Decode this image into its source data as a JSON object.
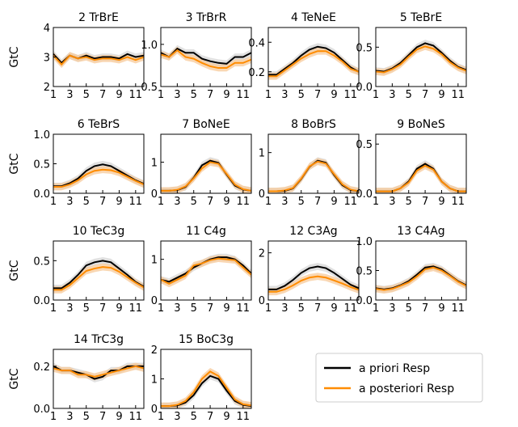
{
  "colors": {
    "prior": "#000000",
    "post": "#ff8c00",
    "prior_band": "#d9d9d9",
    "post_band": "#f7c99a"
  },
  "legend": {
    "prior": "a priori Resp",
    "post": "a posteriori Resp",
    "placement": "lower-right"
  },
  "chart_data": [
    {
      "type": "line",
      "title": "2 TrBrE",
      "ylabel": "GtC",
      "x": [
        1,
        2,
        3,
        4,
        5,
        6,
        7,
        8,
        9,
        10,
        11,
        12
      ],
      "xticks": [
        "1",
        "3",
        "5",
        "7",
        "9",
        "11"
      ],
      "ylim": [
        2,
        4
      ],
      "yticks": [
        "2",
        "3",
        "4"
      ],
      "series": [
        {
          "name": "a priori Resp",
          "values": [
            3.1,
            2.8,
            3.05,
            2.95,
            3.05,
            2.95,
            3.0,
            3.0,
            2.95,
            3.1,
            3.0,
            3.05
          ]
        },
        {
          "name": "a posteriori Resp",
          "values": [
            3.05,
            2.75,
            3.05,
            2.95,
            3.0,
            2.9,
            2.95,
            2.95,
            2.9,
            3.0,
            2.9,
            3.0
          ]
        }
      ]
    },
    {
      "type": "line",
      "title": "3 TrBrR",
      "ylabel": "",
      "x": [
        1,
        2,
        3,
        4,
        5,
        6,
        7,
        8,
        9,
        10,
        11,
        12
      ],
      "xticks": [
        "1",
        "3",
        "5",
        "7",
        "9",
        "11"
      ],
      "ylim": [
        0.5,
        1.2
      ],
      "yticks": [
        "0.5",
        "1.0"
      ],
      "series": [
        {
          "name": "a priori Resp",
          "values": [
            0.9,
            0.85,
            0.95,
            0.9,
            0.9,
            0.83,
            0.8,
            0.78,
            0.77,
            0.85,
            0.85,
            0.9
          ]
        },
        {
          "name": "a posteriori Resp",
          "values": [
            0.88,
            0.85,
            0.93,
            0.85,
            0.83,
            0.78,
            0.74,
            0.72,
            0.72,
            0.78,
            0.78,
            0.82
          ]
        }
      ]
    },
    {
      "type": "line",
      "title": "4 TeNeE",
      "ylabel": "",
      "x": [
        1,
        2,
        3,
        4,
        5,
        6,
        7,
        8,
        9,
        10,
        11,
        12
      ],
      "xticks": [
        "1",
        "3",
        "5",
        "7",
        "9",
        "11"
      ],
      "ylim": [
        0.1,
        0.5
      ],
      "yticks": [
        "0.2",
        "0.4"
      ],
      "series": [
        {
          "name": "a priori Resp",
          "values": [
            0.18,
            0.18,
            0.22,
            0.26,
            0.31,
            0.35,
            0.37,
            0.36,
            0.33,
            0.28,
            0.23,
            0.2
          ]
        },
        {
          "name": "a posteriori Resp",
          "values": [
            0.17,
            0.17,
            0.21,
            0.25,
            0.29,
            0.32,
            0.34,
            0.34,
            0.31,
            0.27,
            0.22,
            0.2
          ]
        }
      ]
    },
    {
      "type": "line",
      "title": "5 TeBrE",
      "ylabel": "",
      "x": [
        1,
        2,
        3,
        4,
        5,
        6,
        7,
        8,
        9,
        10,
        11,
        12
      ],
      "xticks": [
        "1",
        "3",
        "5",
        "7",
        "9",
        "11"
      ],
      "ylim": [
        0,
        0.75
      ],
      "yticks": [
        "0.0",
        "0.5"
      ],
      "series": [
        {
          "name": "a priori Resp",
          "values": [
            0.2,
            0.19,
            0.23,
            0.3,
            0.4,
            0.5,
            0.55,
            0.52,
            0.43,
            0.33,
            0.25,
            0.21
          ]
        },
        {
          "name": "a posteriori Resp",
          "values": [
            0.19,
            0.18,
            0.22,
            0.28,
            0.38,
            0.47,
            0.51,
            0.48,
            0.41,
            0.31,
            0.24,
            0.2
          ]
        }
      ]
    },
    {
      "type": "line",
      "title": "6 TeBrS",
      "ylabel": "GtC",
      "x": [
        1,
        2,
        3,
        4,
        5,
        6,
        7,
        8,
        9,
        10,
        11,
        12
      ],
      "xticks": [
        "1",
        "3",
        "5",
        "7",
        "9",
        "11"
      ],
      "ylim": [
        0,
        1.0
      ],
      "yticks": [
        "0.0",
        "0.5",
        "1.0"
      ],
      "series": [
        {
          "name": "a priori Resp",
          "values": [
            0.12,
            0.12,
            0.17,
            0.25,
            0.38,
            0.46,
            0.49,
            0.46,
            0.38,
            0.3,
            0.22,
            0.16
          ]
        },
        {
          "name": "a posteriori Resp",
          "values": [
            0.11,
            0.11,
            0.15,
            0.22,
            0.32,
            0.38,
            0.4,
            0.39,
            0.35,
            0.28,
            0.21,
            0.15
          ]
        }
      ]
    },
    {
      "type": "line",
      "title": "7 BoNeE",
      "ylabel": "",
      "x": [
        1,
        2,
        3,
        4,
        5,
        6,
        7,
        8,
        9,
        10,
        11,
        12
      ],
      "xticks": [
        "1",
        "3",
        "5",
        "7",
        "9",
        "11"
      ],
      "ylim": [
        0,
        1.9
      ],
      "yticks": [
        "0",
        "1"
      ],
      "series": [
        {
          "name": "a priori Resp",
          "values": [
            0.08,
            0.08,
            0.1,
            0.2,
            0.5,
            0.9,
            1.05,
            0.98,
            0.6,
            0.25,
            0.12,
            0.08
          ]
        },
        {
          "name": "a posteriori Resp",
          "values": [
            0.08,
            0.08,
            0.11,
            0.22,
            0.48,
            0.8,
            1.0,
            0.95,
            0.62,
            0.28,
            0.13,
            0.08
          ]
        }
      ]
    },
    {
      "type": "line",
      "title": "8 BoBrS",
      "ylabel": "",
      "x": [
        1,
        2,
        3,
        4,
        5,
        6,
        7,
        8,
        9,
        10,
        11,
        12
      ],
      "xticks": [
        "1",
        "3",
        "5",
        "7",
        "9",
        "11"
      ],
      "ylim": [
        0,
        1.45
      ],
      "yticks": [
        "0",
        "1"
      ],
      "series": [
        {
          "name": "a priori Resp",
          "values": [
            0.05,
            0.05,
            0.06,
            0.12,
            0.35,
            0.65,
            0.8,
            0.75,
            0.45,
            0.2,
            0.08,
            0.05
          ]
        },
        {
          "name": "a posteriori Resp",
          "values": [
            0.05,
            0.05,
            0.07,
            0.13,
            0.36,
            0.66,
            0.78,
            0.73,
            0.47,
            0.22,
            0.09,
            0.05
          ]
        }
      ]
    },
    {
      "type": "line",
      "title": "9 BoNeS",
      "ylabel": "",
      "x": [
        1,
        2,
        3,
        4,
        5,
        6,
        7,
        8,
        9,
        10,
        11,
        12
      ],
      "xticks": [
        "1",
        "3",
        "5",
        "7",
        "9",
        "11"
      ],
      "ylim": [
        0,
        0.6
      ],
      "yticks": [
        "0.0",
        "0.5"
      ],
      "series": [
        {
          "name": "a priori Resp",
          "values": [
            0.02,
            0.02,
            0.02,
            0.05,
            0.12,
            0.25,
            0.3,
            0.25,
            0.12,
            0.05,
            0.02,
            0.02
          ]
        },
        {
          "name": "a posteriori Resp",
          "values": [
            0.02,
            0.02,
            0.02,
            0.05,
            0.11,
            0.23,
            0.28,
            0.24,
            0.12,
            0.05,
            0.02,
            0.02
          ]
        }
      ]
    },
    {
      "type": "line",
      "title": "10 TeC3g",
      "ylabel": "GtC",
      "x": [
        1,
        2,
        3,
        4,
        5,
        6,
        7,
        8,
        9,
        10,
        11,
        12
      ],
      "xticks": [
        "1",
        "3",
        "5",
        "7",
        "9",
        "11"
      ],
      "ylim": [
        0,
        0.75
      ],
      "yticks": [
        "0.0",
        "0.5"
      ],
      "series": [
        {
          "name": "a priori Resp",
          "values": [
            0.15,
            0.15,
            0.22,
            0.32,
            0.44,
            0.48,
            0.5,
            0.48,
            0.4,
            0.32,
            0.23,
            0.17
          ]
        },
        {
          "name": "a posteriori Resp",
          "values": [
            0.13,
            0.13,
            0.19,
            0.28,
            0.37,
            0.4,
            0.42,
            0.41,
            0.36,
            0.29,
            0.22,
            0.16
          ]
        }
      ]
    },
    {
      "type": "line",
      "title": "11 C4g",
      "ylabel": "",
      "x": [
        1,
        2,
        3,
        4,
        5,
        6,
        7,
        8,
        9,
        10,
        11,
        12
      ],
      "xticks": [
        "1",
        "3",
        "5",
        "7",
        "9",
        "11"
      ],
      "ylim": [
        0,
        1.45
      ],
      "yticks": [
        "0",
        "1"
      ],
      "series": [
        {
          "name": "a priori Resp",
          "values": [
            0.5,
            0.45,
            0.55,
            0.65,
            0.8,
            0.9,
            1.0,
            1.05,
            1.05,
            1.0,
            0.85,
            0.65
          ]
        },
        {
          "name": "a posteriori Resp",
          "values": [
            0.5,
            0.4,
            0.5,
            0.6,
            0.85,
            0.9,
            0.98,
            1.02,
            1.0,
            0.98,
            0.8,
            0.62
          ]
        }
      ]
    },
    {
      "type": "line",
      "title": "12 C3Ag",
      "ylabel": "",
      "x": [
        1,
        2,
        3,
        4,
        5,
        6,
        7,
        8,
        9,
        10,
        11,
        12
      ],
      "xticks": [
        "1",
        "3",
        "5",
        "7",
        "9",
        "11"
      ],
      "ylim": [
        0,
        2.5
      ],
      "yticks": [
        "0",
        "2"
      ],
      "series": [
        {
          "name": "a priori Resp",
          "values": [
            0.45,
            0.45,
            0.6,
            0.85,
            1.15,
            1.35,
            1.42,
            1.35,
            1.15,
            0.9,
            0.65,
            0.5
          ]
        },
        {
          "name": "a posteriori Resp",
          "values": [
            0.35,
            0.35,
            0.45,
            0.62,
            0.82,
            0.95,
            1.0,
            0.95,
            0.83,
            0.7,
            0.55,
            0.43
          ]
        }
      ]
    },
    {
      "type": "line",
      "title": "13 C4Ag",
      "ylabel": "",
      "x": [
        1,
        2,
        3,
        4,
        5,
        6,
        7,
        8,
        9,
        10,
        11,
        12
      ],
      "xticks": [
        "1",
        "3",
        "5",
        "7",
        "9",
        "11"
      ],
      "ylim": [
        0,
        1.0
      ],
      "yticks": [
        "0.0",
        "0.5",
        "1.0"
      ],
      "series": [
        {
          "name": "a priori Resp",
          "values": [
            0.2,
            0.18,
            0.2,
            0.25,
            0.32,
            0.43,
            0.55,
            0.57,
            0.52,
            0.42,
            0.32,
            0.25
          ]
        },
        {
          "name": "a posteriori Resp",
          "values": [
            0.19,
            0.17,
            0.19,
            0.24,
            0.3,
            0.4,
            0.52,
            0.55,
            0.5,
            0.41,
            0.31,
            0.24
          ]
        }
      ]
    },
    {
      "type": "line",
      "title": "14 TrC3g",
      "ylabel": "GtC",
      "x": [
        1,
        2,
        3,
        4,
        5,
        6,
        7,
        8,
        9,
        10,
        11,
        12
      ],
      "xticks": [
        "1",
        "3",
        "5",
        "7",
        "9",
        "11"
      ],
      "ylim": [
        0,
        0.28
      ],
      "yticks": [
        "0.0",
        "0.2"
      ],
      "series": [
        {
          "name": "a priori Resp",
          "values": [
            0.2,
            0.18,
            0.18,
            0.17,
            0.16,
            0.14,
            0.15,
            0.18,
            0.18,
            0.2,
            0.2,
            0.2
          ]
        },
        {
          "name": "a posteriori Resp",
          "values": [
            0.19,
            0.18,
            0.18,
            0.16,
            0.16,
            0.15,
            0.16,
            0.17,
            0.18,
            0.19,
            0.2,
            0.19
          ]
        }
      ]
    },
    {
      "type": "line",
      "title": "15 BoC3g",
      "ylabel": "",
      "x": [
        1,
        2,
        3,
        4,
        5,
        6,
        7,
        8,
        9,
        10,
        11,
        12
      ],
      "xticks": [
        "1",
        "3",
        "5",
        "7",
        "9",
        "11"
      ],
      "ylim": [
        0,
        2.0
      ],
      "yticks": [
        "0",
        "1",
        "2"
      ],
      "series": [
        {
          "name": "a priori Resp",
          "values": [
            0.08,
            0.08,
            0.1,
            0.2,
            0.45,
            0.85,
            1.1,
            1.0,
            0.6,
            0.25,
            0.12,
            0.08
          ]
        },
        {
          "name": "a posteriori Resp",
          "values": [
            0.08,
            0.08,
            0.12,
            0.25,
            0.55,
            1.0,
            1.25,
            1.1,
            0.7,
            0.3,
            0.14,
            0.1
          ]
        }
      ]
    }
  ]
}
